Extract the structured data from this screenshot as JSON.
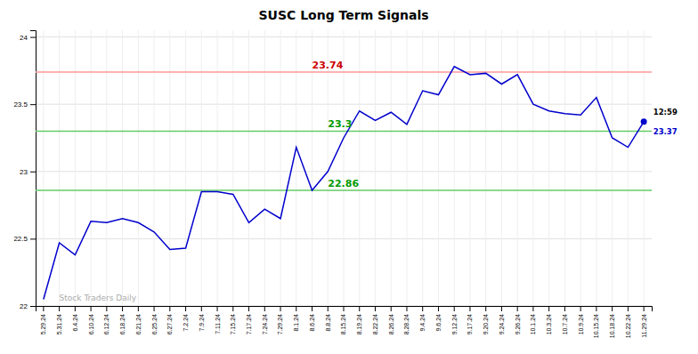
{
  "chart_data": {
    "type": "line",
    "title": "SUSC Long Term Signals",
    "categories": [
      "5.29.24",
      "5.31.24",
      "6.4.24",
      "6.10.24",
      "6.12.24",
      "6.18.24",
      "6.21.24",
      "6.25.24",
      "6.27.24",
      "7.2.24",
      "7.9.24",
      "7.11.24",
      "7.15.24",
      "7.17.24",
      "7.24.24",
      "7.29.24",
      "8.1.24",
      "8.6.24",
      "8.8.24",
      "8.15.24",
      "8.19.24",
      "8.22.24",
      "8.26.24",
      "8.28.24",
      "9.4.24",
      "9.6.24",
      "9.12.24",
      "9.17.24",
      "9.20.24",
      "9.24.24",
      "9.26.24",
      "10.1.24",
      "10.3.24",
      "10.7.24",
      "10.9.24",
      "10.15.24",
      "10.18.24",
      "10.22.24",
      "11.29.24"
    ],
    "values": [
      22.05,
      22.47,
      22.38,
      22.63,
      22.62,
      22.65,
      22.62,
      22.55,
      22.42,
      22.43,
      22.85,
      22.85,
      22.83,
      22.62,
      22.72,
      22.65,
      23.18,
      22.86,
      23.0,
      23.25,
      23.45,
      23.38,
      23.44,
      23.35,
      23.6,
      23.57,
      23.78,
      23.72,
      23.73,
      23.65,
      23.72,
      23.5,
      23.45,
      23.43,
      23.42,
      23.55,
      23.25,
      23.18,
      23.37
    ],
    "color": "#0000cc",
    "marker": "last",
    "hlines": [
      {
        "value": 23.74,
        "label": "23.74",
        "color": "#ff9999",
        "label_color": "#cc0000"
      },
      {
        "value": 23.3,
        "label": "23.3",
        "color": "#66cc66",
        "label_color": "#009900"
      },
      {
        "value": 22.86,
        "label": "22.86",
        "color": "#66cc66",
        "label_color": "#009900"
      }
    ],
    "annotations": [
      {
        "text": "12:59",
        "color": "#000000"
      },
      {
        "text": "23.37",
        "color": "#0000cc"
      },
      {
        "text": "Stock Traders Daily",
        "color": "#aaaaaa"
      }
    ],
    "ylim": [
      22.0,
      24.05
    ],
    "yticks": [
      22,
      22.5,
      23,
      23.5,
      24
    ],
    "grid": true
  }
}
